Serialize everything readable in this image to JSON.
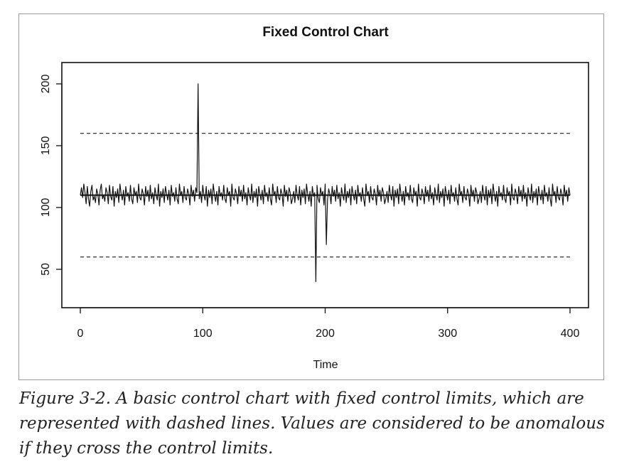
{
  "chart_data": {
    "type": "line",
    "title": "Fixed Control Chart",
    "xlabel": "Time",
    "ylabel": "",
    "xlim": [
      0,
      400
    ],
    "ylim": [
      20,
      220
    ],
    "xticks": [
      0,
      100,
      200,
      300,
      400
    ],
    "yticks": [
      50,
      100,
      150,
      200
    ],
    "center_line": 110,
    "upper_control_limit": 160,
    "lower_control_limit": 60,
    "series": [
      {
        "values": [
          110,
          116,
          108,
          119,
          112,
          103,
          117,
          107,
          101,
          113,
          118,
          106,
          109,
          104,
          115,
          111,
          102,
          114,
          119,
          107,
          110,
          105,
          116,
          112,
          103,
          118,
          109,
          106,
          117,
          101,
          113,
          108,
          115,
          104,
          119,
          111,
          106,
          114,
          102,
          117,
          109,
          112,
          105,
          118,
          107,
          103,
          116,
          110,
          113,
          104,
          119,
          108,
          106,
          115,
          111,
          102,
          117,
          109,
          114,
          105,
          118,
          107,
          112,
          103,
          116,
          110,
          106,
          119,
          101,
          113,
          108,
          115,
          104,
          117,
          111,
          106,
          114,
          102,
          118,
          109,
          112,
          105,
          116,
          107,
          103,
          119,
          110,
          113,
          104,
          117,
          108,
          106,
          115,
          111,
          102,
          118,
          109,
          114,
          105,
          116,
          112,
          200,
          107,
          113,
          104,
          118,
          110,
          106,
          117,
          101,
          114,
          108,
          115,
          103,
          119,
          111,
          105,
          113,
          102,
          117,
          109,
          112,
          106,
          118,
          107,
          104,
          116,
          110,
          113,
          101,
          119,
          108,
          106,
          115,
          111,
          103,
          117,
          109,
          114,
          105,
          118,
          107,
          112,
          102,
          116,
          110,
          106,
          119,
          104,
          113,
          108,
          115,
          101,
          117,
          111,
          106,
          114,
          103,
          118,
          109,
          112,
          105,
          116,
          107,
          102,
          119,
          110,
          113,
          104,
          117,
          108,
          106,
          115,
          111,
          101,
          118,
          109,
          114,
          105,
          116,
          112,
          103,
          107,
          113,
          104,
          118,
          110,
          106,
          117,
          102,
          114,
          108,
          115,
          103,
          119,
          111,
          105,
          113,
          101,
          117,
          109,
          112,
          40,
          118,
          107,
          104,
          116,
          110,
          113,
          102,
          119,
          70,
          106,
          115,
          111,
          103,
          117,
          109,
          114,
          105,
          118,
          107,
          112,
          101,
          116,
          110,
          106,
          119,
          104,
          113,
          108,
          115,
          102,
          117,
          111,
          106,
          114,
          103,
          118,
          109,
          112,
          105,
          116,
          107,
          101,
          119,
          110,
          113,
          104,
          117,
          108,
          106,
          115,
          111,
          102,
          118,
          109,
          114,
          105,
          116,
          112,
          103,
          107,
          113,
          104,
          118,
          110,
          106,
          117,
          101,
          114,
          108,
          115,
          103,
          119,
          111,
          105,
          113,
          102,
          117,
          109,
          112,
          106,
          118,
          107,
          104,
          116,
          110,
          113,
          101,
          119,
          108,
          106,
          115,
          111,
          103,
          117,
          109,
          114,
          105,
          118,
          107,
          112,
          102,
          116,
          110,
          106,
          119,
          104,
          113,
          108,
          115,
          101,
          117,
          111,
          106,
          114,
          103,
          118,
          109,
          112,
          105,
          116,
          107,
          102,
          119,
          110,
          113,
          104,
          117,
          108,
          106,
          115,
          111,
          101,
          118,
          109,
          114,
          105,
          116,
          112,
          103,
          107,
          113,
          104,
          118,
          110,
          106,
          117,
          102,
          114,
          108,
          115,
          103,
          119,
          111,
          105,
          113,
          101,
          117,
          109,
          112,
          106,
          118,
          107,
          104,
          116,
          110,
          113,
          102,
          119,
          108,
          106,
          115,
          111,
          103,
          117,
          109,
          114,
          105,
          118,
          107,
          112,
          101,
          116,
          110,
          106,
          119,
          104,
          113,
          108,
          115,
          102,
          117,
          111,
          106,
          114,
          103,
          118,
          109,
          112,
          105,
          116,
          107,
          101,
          119,
          110,
          113,
          104,
          117,
          108,
          106,
          115,
          111,
          102,
          118,
          109,
          114,
          105,
          116,
          110
        ]
      }
    ],
    "grid": false,
    "legend": "none"
  },
  "caption": "Figure 3-2. A basic control chart with fixed control limits, which are represented with dashed lines. Values are considered to be anomalous if they cross the control limits."
}
